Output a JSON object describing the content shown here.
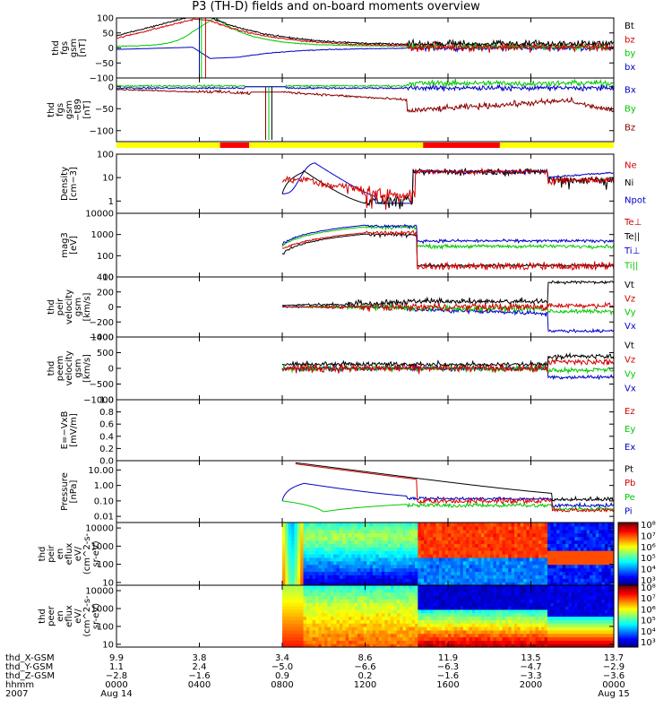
{
  "title": "P3 (TH-D) fields and on-board moments overview",
  "chart_data": {
    "type": "line",
    "title": "P3 (TH-D) fields and on-board moments overview",
    "x_range_hours": [
      0,
      24
    ],
    "date_start": "Aug 14",
    "date_end": "Aug 15",
    "year": "2007",
    "panels": [
      {
        "id": "fgs",
        "ylabel": [
          "thd",
          "fgs",
          "gsm",
          "[nT]"
        ],
        "ylim": [
          -100,
          100
        ],
        "yticks": [
          "100",
          "50",
          "0",
          "−50",
          "−100"
        ],
        "legend": [
          {
            "label": "Bt",
            "color": "#000000"
          },
          {
            "label": "bz",
            "color": "#d40000"
          },
          {
            "label": "by",
            "color": "#00c800"
          },
          {
            "label": "bx",
            "color": "#0000c8"
          }
        ]
      },
      {
        "id": "fgs_t89",
        "ylabel": [
          "thd",
          "fgs",
          "gsm",
          "−t89",
          "[nT]"
        ],
        "ylim": [
          -125,
          20
        ],
        "yticks": [
          "0",
          "−50",
          "−100"
        ],
        "legend": [
          {
            "label": "Bx",
            "color": "#0000c8"
          },
          {
            "label": "By",
            "color": "#00c800"
          },
          {
            "label": "Bz",
            "color": "#8b0000"
          }
        ]
      },
      {
        "id": "density",
        "ylabel": [
          "Density",
          "[cm−3]"
        ],
        "ylim": [
          0.3,
          100
        ],
        "scale": "log",
        "yticks": [
          "100",
          "10",
          "1"
        ],
        "legend": [
          {
            "label": "Ne",
            "color": "#d40000"
          },
          {
            "label": "Ni",
            "color": "#000000"
          },
          {
            "label": "Npot",
            "color": "#0000c8"
          }
        ]
      },
      {
        "id": "temperature",
        "ylabel": [
          "mag3",
          "[eV]"
        ],
        "ylim": [
          10,
          10000
        ],
        "scale": "log",
        "yticks": [
          "10000",
          "1000",
          "100",
          "10"
        ],
        "legend": [
          {
            "label": "Te⊥",
            "color": "#d40000"
          },
          {
            "label": "Te||",
            "color": "#000000"
          },
          {
            "label": "Ti⊥",
            "color": "#0000c8"
          },
          {
            "label": "Ti||",
            "color": "#00c800"
          }
        ]
      },
      {
        "id": "peir_velocity",
        "ylabel": [
          "thd",
          "peir",
          "velocity",
          "gsm",
          "[km/s]"
        ],
        "ylim": [
          -400,
          400
        ],
        "yticks": [
          "400",
          "200",
          "0",
          "−200",
          "−400"
        ],
        "legend": [
          {
            "label": "Vt",
            "color": "#000000"
          },
          {
            "label": "Vz",
            "color": "#d40000"
          },
          {
            "label": "Vy",
            "color": "#00c800"
          },
          {
            "label": "Vx",
            "color": "#0000c8"
          }
        ]
      },
      {
        "id": "peem_velocity",
        "ylabel": [
          "thd",
          "peem",
          "velocity",
          "gsm",
          "[km/s]"
        ],
        "ylim": [
          -1000,
          1000
        ],
        "yticks": [
          "1000",
          "500",
          "0",
          "−500",
          "−1000"
        ],
        "legend": [
          {
            "label": "Vt",
            "color": "#000000"
          },
          {
            "label": "Vz",
            "color": "#d40000"
          },
          {
            "label": "Vy",
            "color": "#00c800"
          },
          {
            "label": "Vx",
            "color": "#0000c8"
          }
        ]
      },
      {
        "id": "efield",
        "ylabel": [
          "E=−VxB",
          "[mV/m]"
        ],
        "ylim": [
          0,
          1
        ],
        "yticks": [
          "1.0",
          "0.8",
          "0.6",
          "0.4",
          "0.2",
          "0.0"
        ],
        "legend": [
          {
            "label": "Ez",
            "color": "#d40000"
          },
          {
            "label": "Ey",
            "color": "#00c800"
          },
          {
            "label": "Ex",
            "color": "#0000c8"
          }
        ]
      },
      {
        "id": "pressure",
        "ylabel": [
          "Pressure",
          "[nPa]"
        ],
        "ylim": [
          0.004,
          40
        ],
        "scale": "log",
        "yticks": [
          "10.00",
          "1.00",
          "0.10",
          "0.01"
        ],
        "legend": [
          {
            "label": "Pt",
            "color": "#000000"
          },
          {
            "label": "Pb",
            "color": "#d40000"
          },
          {
            "label": "Pe",
            "color": "#00c800"
          },
          {
            "label": "Pi",
            "color": "#0000c8"
          }
        ]
      },
      {
        "id": "peir_spec",
        "type": "heatmap",
        "ylabel": [
          "thd",
          "peir",
          "en",
          "eflux",
          "eV/",
          "(cm^2-s-",
          "sr-eV)"
        ],
        "ylim": [
          7,
          20000
        ],
        "scale": "log",
        "yticks": [
          "10000",
          "1000",
          "100",
          "10"
        ],
        "colorbar_ticks": [
          "10⁸",
          "10⁷",
          "10⁶",
          "10⁵",
          "10⁴",
          "10³"
        ]
      },
      {
        "id": "peer_spec",
        "type": "heatmap",
        "ylabel": [
          "thd",
          "peer",
          "en",
          "eflux",
          "eV/",
          "(cm^2-s-",
          "sr-eV)"
        ],
        "ylim": [
          7,
          20000
        ],
        "scale": "log",
        "yticks": [
          "10000",
          "1000",
          "100",
          "10"
        ],
        "colorbar_ticks": [
          "10⁸",
          "10⁷",
          "10⁶",
          "10⁵",
          "10⁴",
          "10³"
        ]
      }
    ],
    "mode_bar": {
      "red_intervals_hours": [
        [
          5.0,
          6.4
        ],
        [
          14.8,
          18.5
        ]
      ],
      "colors": {
        "slow": "#ffff00",
        "fast": "#ff0000"
      }
    },
    "x_axis": {
      "row_labels": [
        "thd_X-GSM",
        "thd_Y-GSM",
        "thd_Z-GSM",
        "hhmm",
        "2007"
      ],
      "ticks_hours": [
        0,
        4,
        8,
        12,
        16,
        20,
        24
      ],
      "columns": [
        {
          "x": "9.9",
          "y": "1.1",
          "z": "−2.8",
          "hhmm": "0000",
          "date": "Aug 14"
        },
        {
          "x": "3.8",
          "y": "2.4",
          "z": "−1.6",
          "hhmm": "0400",
          "date": ""
        },
        {
          "x": "3.4",
          "y": "−5.0",
          "z": "0.9",
          "hhmm": "0800",
          "date": ""
        },
        {
          "x": "8.6",
          "y": "−6.6",
          "z": "0.2",
          "hhmm": "1200",
          "date": ""
        },
        {
          "x": "11.9",
          "y": "−6.3",
          "z": "−1.6",
          "hhmm": "1600",
          "date": ""
        },
        {
          "x": "13.5",
          "y": "−4.7",
          "z": "−3.3",
          "hhmm": "2000",
          "date": ""
        },
        {
          "x": "13.7",
          "y": "−2.9",
          "z": "−3.6",
          "hhmm": "0000",
          "date": "Aug 15"
        }
      ]
    }
  }
}
